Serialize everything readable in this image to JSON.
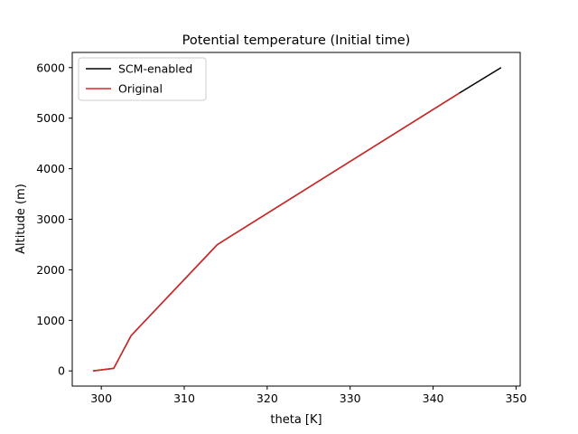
{
  "chart_data": {
    "type": "line",
    "title": "Potential temperature (Initial time)",
    "xlabel": "theta [K]",
    "ylabel": "Altitude (m)",
    "xlim": [
      296.5,
      350.5
    ],
    "ylim": [
      -300,
      6300
    ],
    "xticks": [
      300,
      310,
      320,
      330,
      340,
      350
    ],
    "yticks": [
      0,
      1000,
      2000,
      3000,
      4000,
      5000,
      6000
    ],
    "xtick_labels": [
      "300",
      "310",
      "320",
      "330",
      "340",
      "350"
    ],
    "ytick_labels": [
      "0",
      "1000",
      "2000",
      "3000",
      "4000",
      "5000",
      "6000"
    ],
    "grid": false,
    "legend_position": "top-left",
    "series": [
      {
        "name": "SCM-enabled",
        "color": "#000000",
        "x": [
          299.0,
          301.5,
          303.6,
          314.0,
          343.2,
          348.2
        ],
        "y": [
          0,
          50,
          700,
          2500,
          5500,
          6000
        ]
      },
      {
        "name": "Original",
        "color": "#d62728",
        "x": [
          299.0,
          301.5,
          303.6,
          314.0,
          343.2
        ],
        "y": [
          0,
          50,
          700,
          2500,
          5500
        ]
      }
    ]
  }
}
